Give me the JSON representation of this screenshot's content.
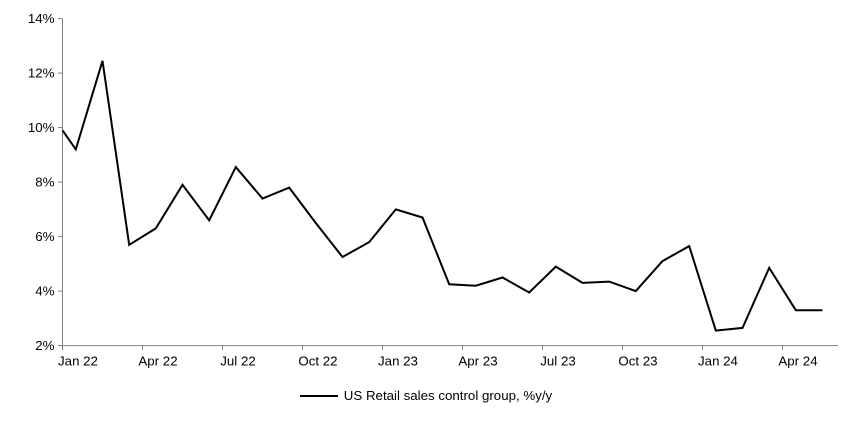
{
  "chart_data": {
    "type": "line",
    "title": "",
    "legend": "US Retail sales control group, %y/y",
    "ylabel": "",
    "xlabel": "",
    "ylim": [
      2,
      14
    ],
    "y_tick_step": 2,
    "y_tick_labels": [
      "2%",
      "4%",
      "6%",
      "8%",
      "10%",
      "12%",
      "14%"
    ],
    "x_tick_labels": [
      "Jan 22",
      "Apr 22",
      "Jul 22",
      "Oct 22",
      "Jan 23",
      "Apr 23",
      "Jul 23",
      "Oct 23",
      "Jan 24",
      "Apr 24"
    ],
    "months": [
      "Jan 22",
      "Feb 22",
      "Mar 22",
      "Apr 22",
      "May 22",
      "Jun 22",
      "Jul 22",
      "Aug 22",
      "Sep 22",
      "Oct 22",
      "Nov 22",
      "Dec 22",
      "Jan 23",
      "Feb 23",
      "Mar 23",
      "Apr 23",
      "May 23",
      "Jun 23",
      "Jul 23",
      "Aug 23",
      "Sep 23",
      "Oct 23",
      "Nov 23",
      "Dec 23",
      "Jan 24",
      "Feb 24",
      "Mar 24",
      "Apr 24",
      "May 24"
    ],
    "values": [
      9.2,
      12.45,
      5.7,
      6.3,
      7.9,
      6.6,
      8.55,
      7.4,
      7.8,
      6.5,
      5.25,
      5.8,
      7.0,
      6.7,
      4.25,
      4.2,
      4.5,
      3.95,
      4.9,
      4.3,
      4.35,
      4.0,
      5.1,
      5.65,
      2.55,
      2.65,
      4.85,
      3.3,
      3.3
    ],
    "clipped_start_value": 9.9,
    "grid": false,
    "legend_position": "bottom-center",
    "line_color": "#000000",
    "axis_color": "#808080",
    "background_color": "#ffffff"
  }
}
